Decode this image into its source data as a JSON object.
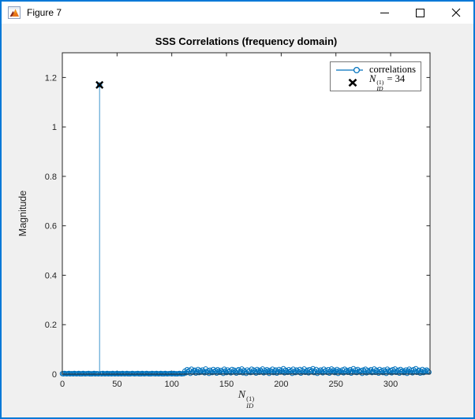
{
  "window": {
    "title": "Figure 7",
    "icons": {
      "app": "matlab-logo",
      "minimize": "thin-dash",
      "maximize": "outline-square",
      "close": "thin-x"
    },
    "border_color": "#0078D7",
    "titlebar_color": "#ffffff"
  },
  "figure": {
    "background_color": "#F0F0F0",
    "plot_background_color": "#ffffff",
    "axes_color": "#262626",
    "stem_color": "#0072BD",
    "peak_marker_color": "#000000"
  },
  "chart_data": {
    "type": "stem",
    "title": "SSS Correlations (frequency domain)",
    "ylabel": "Magnitude",
    "xlabel_parts": {
      "base": "N",
      "sup": "(1)",
      "sub": "ID"
    },
    "xlim": [
      0,
      336
    ],
    "ylim": [
      0,
      1.3
    ],
    "xticks": [
      0,
      50,
      100,
      150,
      200,
      250,
      300
    ],
    "yticks": [
      0,
      0.2,
      0.4,
      0.6,
      0.8,
      1,
      1.2
    ],
    "xtick_labels": [
      "0",
      "50",
      "100",
      "150",
      "200",
      "250",
      "300"
    ],
    "ytick_labels": [
      "0",
      "0.2",
      "0.4",
      "0.6",
      "0.8",
      "1",
      "1.2"
    ],
    "grid": false,
    "peak": {
      "x": 34,
      "y": 1.17
    },
    "legend": {
      "position": "northeast",
      "entries": [
        {
          "label": "correlations",
          "marker": "line-with-circle",
          "color": "#0072BD"
        },
        {
          "parts": {
            "base": "N",
            "sup": "(1)",
            "sub": "ID",
            "rest": "= 34"
          },
          "marker": "bold-x",
          "color": "#000000"
        }
      ]
    },
    "x_start": 0,
    "values": [
      0.002,
      0.001,
      0.003,
      0.002,
      0.001,
      0.002,
      0.003,
      0.001,
      0.002,
      0.002,
      0.001,
      0.003,
      0.002,
      0.001,
      0.002,
      0.003,
      0.001,
      0.002,
      0.001,
      0.003,
      0.002,
      0.001,
      0.002,
      0.002,
      0.003,
      0.001,
      0.002,
      0.001,
      0.002,
      0.003,
      0.001,
      0.002,
      0.002,
      0.001,
      1.17,
      0.002,
      0.001,
      0.003,
      0.002,
      0.001,
      0.002,
      0.003,
      0.001,
      0.002,
      0.002,
      0.001,
      0.003,
      0.002,
      0.001,
      0.002,
      0.003,
      0.001,
      0.002,
      0.002,
      0.001,
      0.003,
      0.002,
      0.001,
      0.002,
      0.003,
      0.001,
      0.002,
      0.001,
      0.002,
      0.003,
      0.002,
      0.001,
      0.002,
      0.002,
      0.003,
      0.001,
      0.002,
      0.001,
      0.003,
      0.002,
      0.001,
      0.002,
      0.003,
      0.002,
      0.001,
      0.002,
      0.001,
      0.003,
      0.002,
      0.002,
      0.001,
      0.003,
      0.002,
      0.001,
      0.002,
      0.003,
      0.001,
      0.002,
      0.001,
      0.003,
      0.002,
      0.001,
      0.002,
      0.002,
      0.003,
      0.001,
      0.002,
      0.003,
      0.001,
      0.002,
      0.001,
      0.002,
      0.003,
      0.002,
      0.001,
      0.002,
      0.002,
      0.012,
      0.005,
      0.018,
      0.009,
      0.015,
      0.003,
      0.02,
      0.007,
      0.013,
      0.016,
      0.004,
      0.011,
      0.019,
      0.006,
      0.014,
      0.008,
      0.017,
      0.01,
      0.005,
      0.021,
      0.008,
      0.013,
      0.003,
      0.016,
      0.011,
      0.006,
      0.019,
      0.009,
      0.014,
      0.004,
      0.018,
      0.012,
      0.007,
      0.015,
      0.01,
      0.003,
      0.02,
      0.013,
      0.006,
      0.017,
      0.009,
      0.012,
      0.005,
      0.019,
      0.008,
      0.016,
      0.011,
      0.004,
      0.014,
      0.018,
      0.007,
      0.012,
      0.021,
      0.005,
      0.015,
      0.009,
      0.003,
      0.017,
      0.01,
      0.013,
      0.006,
      0.02,
      0.008,
      0.016,
      0.011,
      0.004,
      0.019,
      0.013,
      0.007,
      0.016,
      0.01,
      0.021,
      0.005,
      0.014,
      0.008,
      0.018,
      0.012,
      0.003,
      0.015,
      0.009,
      0.02,
      0.006,
      0.013,
      0.017,
      0.004,
      0.011,
      0.019,
      0.008,
      0.015,
      0.01,
      0.022,
      0.005,
      0.016,
      0.012,
      0.007,
      0.018,
      0.009,
      0.014,
      0.003,
      0.02,
      0.011,
      0.006,
      0.017,
      0.013,
      0.008,
      0.019,
      0.004,
      0.015,
      0.01,
      0.021,
      0.007,
      0.012,
      0.016,
      0.005,
      0.018,
      0.009,
      0.014,
      0.022,
      0.006,
      0.011,
      0.019,
      0.003,
      0.013,
      0.008,
      0.017,
      0.012,
      0.005,
      0.02,
      0.01,
      0.015,
      0.007,
      0.018,
      0.004,
      0.013,
      0.021,
      0.009,
      0.016,
      0.006,
      0.012,
      0.019,
      0.003,
      0.014,
      0.011,
      0.008,
      0.017,
      0.005,
      0.02,
      0.01,
      0.015,
      0.007,
      0.013,
      0.018,
      0.004,
      0.011,
      0.022,
      0.008,
      0.016,
      0.006,
      0.019,
      0.012,
      0.009,
      0.014,
      0.003,
      0.017,
      0.011,
      0.02,
      0.005,
      0.015,
      0.008,
      0.013,
      0.018,
      0.006,
      0.01,
      0.021,
      0.007,
      0.016,
      0.012,
      0.004,
      0.019,
      0.009,
      0.014,
      0.006,
      0.017,
      0.011,
      0.003,
      0.02,
      0.013,
      0.008,
      0.015,
      0.005,
      0.018,
      0.01,
      0.021,
      0.007,
      0.012,
      0.016,
      0.004,
      0.019,
      0.009,
      0.014,
      0.006,
      0.011,
      0.017,
      0.003,
      0.013,
      0.02,
      0.008,
      0.015,
      0.005,
      0.018,
      0.01,
      0.022,
      0.007,
      0.013,
      0.016,
      0.004,
      0.011,
      0.019,
      0.006,
      0.014,
      0.009,
      0.017,
      0.012,
      0.008
    ]
  }
}
